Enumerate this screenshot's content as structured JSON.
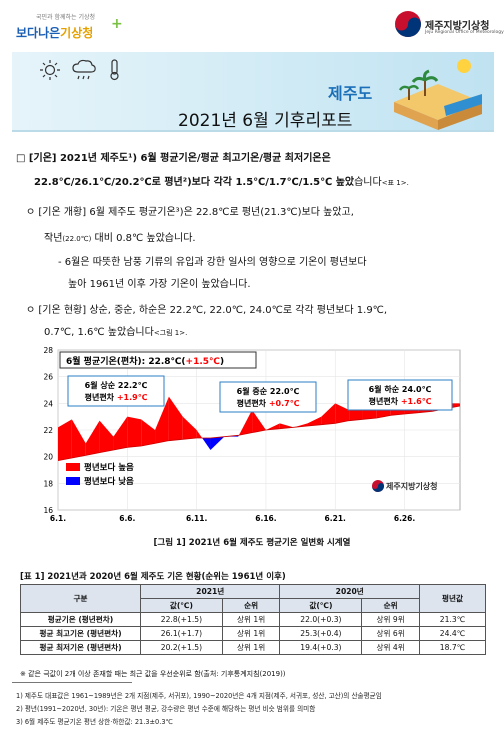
{
  "header": {
    "left_logo_sub": "국민과 함께하는 기상청",
    "left_logo_main_a": "보다나은",
    "left_logo_main_b": "기상청",
    "right_logo_name": "제주지방기상청",
    "right_logo_en": "Jeju Regional Office of Meteorology",
    "icons": [
      "sun-icon",
      "rain-cloud-icon",
      "thermometer-icon",
      "beach-island-icon"
    ]
  },
  "banner": {
    "place": "제주도",
    "title": "2021년 6월 기후리포트"
  },
  "body": {
    "p1_line1": "□ [기온] 2021년 제주도¹) 6월 평균기온/평균 최고기온/평균 최저기온은",
    "p1_line2a": "22.8℃/26.1℃/20.2℃로 평년²)보다 각각 1.5℃/1.7℃/1.5℃ 높았",
    "p1_line2b": "습니다",
    "p1_ref": "<표 1>.",
    "p2_line1": "ㅇ [기온 개황] 6월 제주도 평균기온³)은 22.8℃로 평년(21.3℃)보다 높았고,",
    "p2_line2a": "작년",
    "p2_line2b": "(22.0℃)",
    "p2_line2c": " 대비 0.8℃ 높았습니다.",
    "p3_line1": "- 6월은 따뜻한 남풍 기류의 유입과 강한 일사의 영향으로 기온이 평년보다",
    "p3_line2": "높아 1961년 이후 가장 기온이 높았습니다.",
    "p4_line1": "ㅇ [기온 현황] 상순, 중순, 하순은 22.2℃, 22.0℃, 24.0℃로 각각 평년보다 1.9℃,",
    "p4_line2a": "0.7℃, 1.6℃ 높았습니다",
    "p4_ref": "<그림 1>."
  },
  "chart_data": {
    "type": "area",
    "title_main": "6월 평균기온(편차): 22.8℃(",
    "title_dev": "+1.5℃",
    "title_end": ")",
    "ylim": [
      16,
      28
    ],
    "yticks": [
      16,
      18,
      20,
      22,
      24,
      26,
      28
    ],
    "xticks": [
      "6.1.",
      "6.6.",
      "6.11.",
      "6.16.",
      "6.21.",
      "6.26."
    ],
    "x": [
      1,
      2,
      3,
      4,
      5,
      6,
      7,
      8,
      9,
      10,
      11,
      12,
      13,
      14,
      15,
      16,
      17,
      18,
      19,
      20,
      21,
      22,
      23,
      24,
      25,
      26,
      27,
      28,
      29,
      30
    ],
    "observed": [
      22.2,
      22.8,
      21.0,
      22.7,
      21.5,
      23.0,
      22.8,
      22.0,
      24.5,
      23.0,
      22.0,
      20.5,
      21.5,
      21.5,
      23.5,
      22.0,
      22.5,
      22.2,
      22.5,
      23.0,
      24.0,
      23.5,
      23.5,
      24.0,
      24.8,
      24.2,
      24.5,
      24.0,
      24.0,
      24.0
    ],
    "normal": [
      19.7,
      19.9,
      20.1,
      20.3,
      20.5,
      20.7,
      20.8,
      21.0,
      21.2,
      21.3,
      21.4,
      21.4,
      21.5,
      21.6,
      21.8,
      22.0,
      22.1,
      22.2,
      22.3,
      22.4,
      22.5,
      22.7,
      22.8,
      22.9,
      23.1,
      23.2,
      23.3,
      23.4,
      23.6,
      23.8
    ],
    "annotations": [
      {
        "line1": "6월 상순 22.2℃",
        "line2a": "평년편차 ",
        "line2b": "+1.9℃"
      },
      {
        "line1": "6월 중순 22.0℃",
        "line2a": "평년편차 ",
        "line2b": "+0.7℃"
      },
      {
        "line1": "6월 하순 24.0℃",
        "line2a": "평년편차 ",
        "line2b": "+1.6℃"
      }
    ],
    "legend": [
      {
        "label": "평년보다 높음",
        "color": "#ff0000"
      },
      {
        "label": "평년보다 낮음",
        "color": "#0000ff"
      }
    ],
    "watermark": "제주지방기상청",
    "colors": {
      "above": "#ff0000",
      "below": "#0000ff",
      "dev": "#ff0000"
    }
  },
  "chart_caption": "[그림 1] 2021년 6월 제주도 평균기온 일변화 시계열",
  "table": {
    "title": "[표 1] 2021년과 2020년 6월 제주도 기온 현황(순위는 1961년 이후)",
    "col_group": "구분",
    "year1": "2021년",
    "year2": "2020년",
    "normal_col": "평년값",
    "sub_headers": [
      "값(℃)",
      "순위",
      "값(℃)",
      "순위"
    ],
    "rows": [
      {
        "label": "평균기온 (평년편차)",
        "v1": "22.8(+1.5)",
        "r1": "상위 1위",
        "v2": "22.0(+0.3)",
        "r2": "상위 9위",
        "normal": "21.3℃"
      },
      {
        "label": "평균 최고기온 (평년편차)",
        "v1": "26.1(+1.7)",
        "r1": "상위 1위",
        "v2": "25.3(+0.4)",
        "r2": "상위 6위",
        "normal": "24.4℃"
      },
      {
        "label": "평균 최저기온 (평년편차)",
        "v1": "20.2(+1.5)",
        "r1": "상위 1위",
        "v2": "19.4(+0.3)",
        "r2": "상위 4위",
        "normal": "18.7℃"
      }
    ],
    "note": "※ 같은 극값이 2개 이상 존재할 때는 최근 값을 우선순위로 함(출처: 기후통계지침(2019))"
  },
  "footnotes": [
    "1) 제주도 대표값은 1961~1989년은 2개 지점(제주, 서귀포), 1990~2020년은 4개 지점(제주, 서귀포, 성산, 고산)의 산술평균임",
    "2) 평년(1991~2020년, 30년): 기온은 평년 평균, 강수량은 평년 수준에 해당하는 평년 비슷 범위를 의미함",
    "3) 6월 제주도 평균기온 평년 상한·하한값: 21.3±0.3℃"
  ]
}
